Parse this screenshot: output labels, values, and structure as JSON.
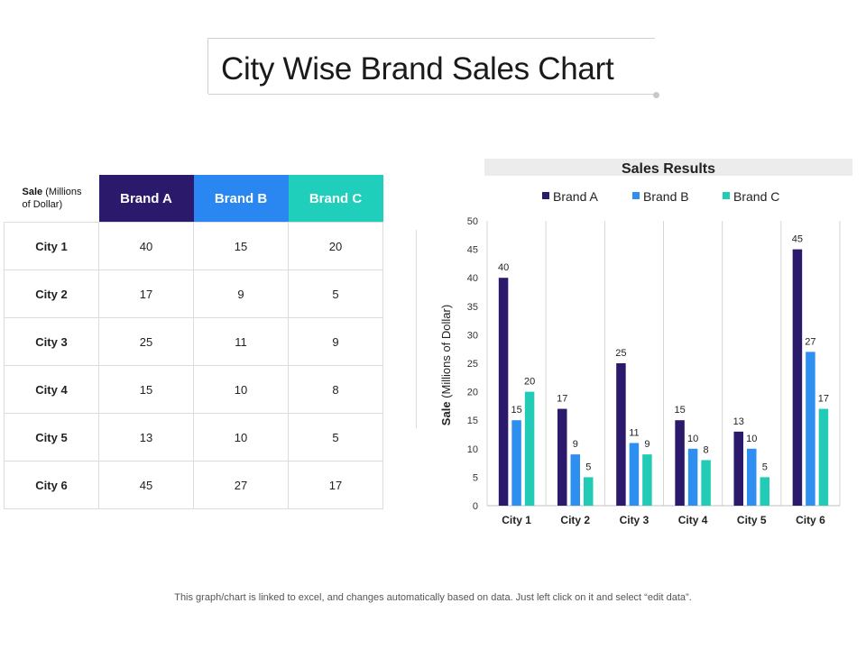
{
  "page": {
    "title": "City Wise Brand Sales Chart",
    "footnote": "This graph/chart is linked to excel, and changes automatically based on data. Just left click on it and select “edit data”."
  },
  "table": {
    "corner_bold": "Sale",
    "corner_rest_1": " (Millions",
    "corner_rest_2": "of Dollar)",
    "headers": [
      "Brand A",
      "Brand B",
      "Brand C"
    ],
    "rows": [
      {
        "city": "City 1",
        "a": "40",
        "b": "15",
        "c": "20"
      },
      {
        "city": "City 2",
        "a": "17",
        "b": "9",
        "c": "5"
      },
      {
        "city": "City 3",
        "a": "25",
        "b": "11",
        "c": "9"
      },
      {
        "city": "City 4",
        "a": "15",
        "b": "10",
        "c": "8"
      },
      {
        "city": "City 5",
        "a": "13",
        "b": "10",
        "c": "5"
      },
      {
        "city": "City 6",
        "a": "45",
        "b": "27",
        "c": "17"
      }
    ]
  },
  "colors": {
    "brand_a": "#2b1a6b",
    "brand_b": "#2e8ff0",
    "brand_c": "#22cbb5",
    "header_a": "#2b1a6b",
    "header_b": "#2a86f0",
    "header_c": "#1fcfbb"
  },
  "chart_data": {
    "type": "bar",
    "title": "Sales Results",
    "ylabel_bold": "Sale",
    "ylabel_rest": " (Millions of Dollar)",
    "xlabel": "",
    "categories": [
      "City 1",
      "City 2",
      "City 3",
      "City 4",
      "City 5",
      "City 6"
    ],
    "series": [
      {
        "name": "Brand A",
        "values": [
          40,
          17,
          25,
          15,
          13,
          45
        ]
      },
      {
        "name": "Brand B",
        "values": [
          15,
          9,
          11,
          10,
          10,
          27
        ]
      },
      {
        "name": "Brand C",
        "values": [
          20,
          5,
          9,
          8,
          5,
          17
        ]
      }
    ],
    "ylim": [
      0,
      50
    ],
    "yticks": [
      0,
      5,
      10,
      15,
      20,
      25,
      30,
      35,
      40,
      45,
      50
    ],
    "legend": "top",
    "grid": "vertical category separators"
  }
}
